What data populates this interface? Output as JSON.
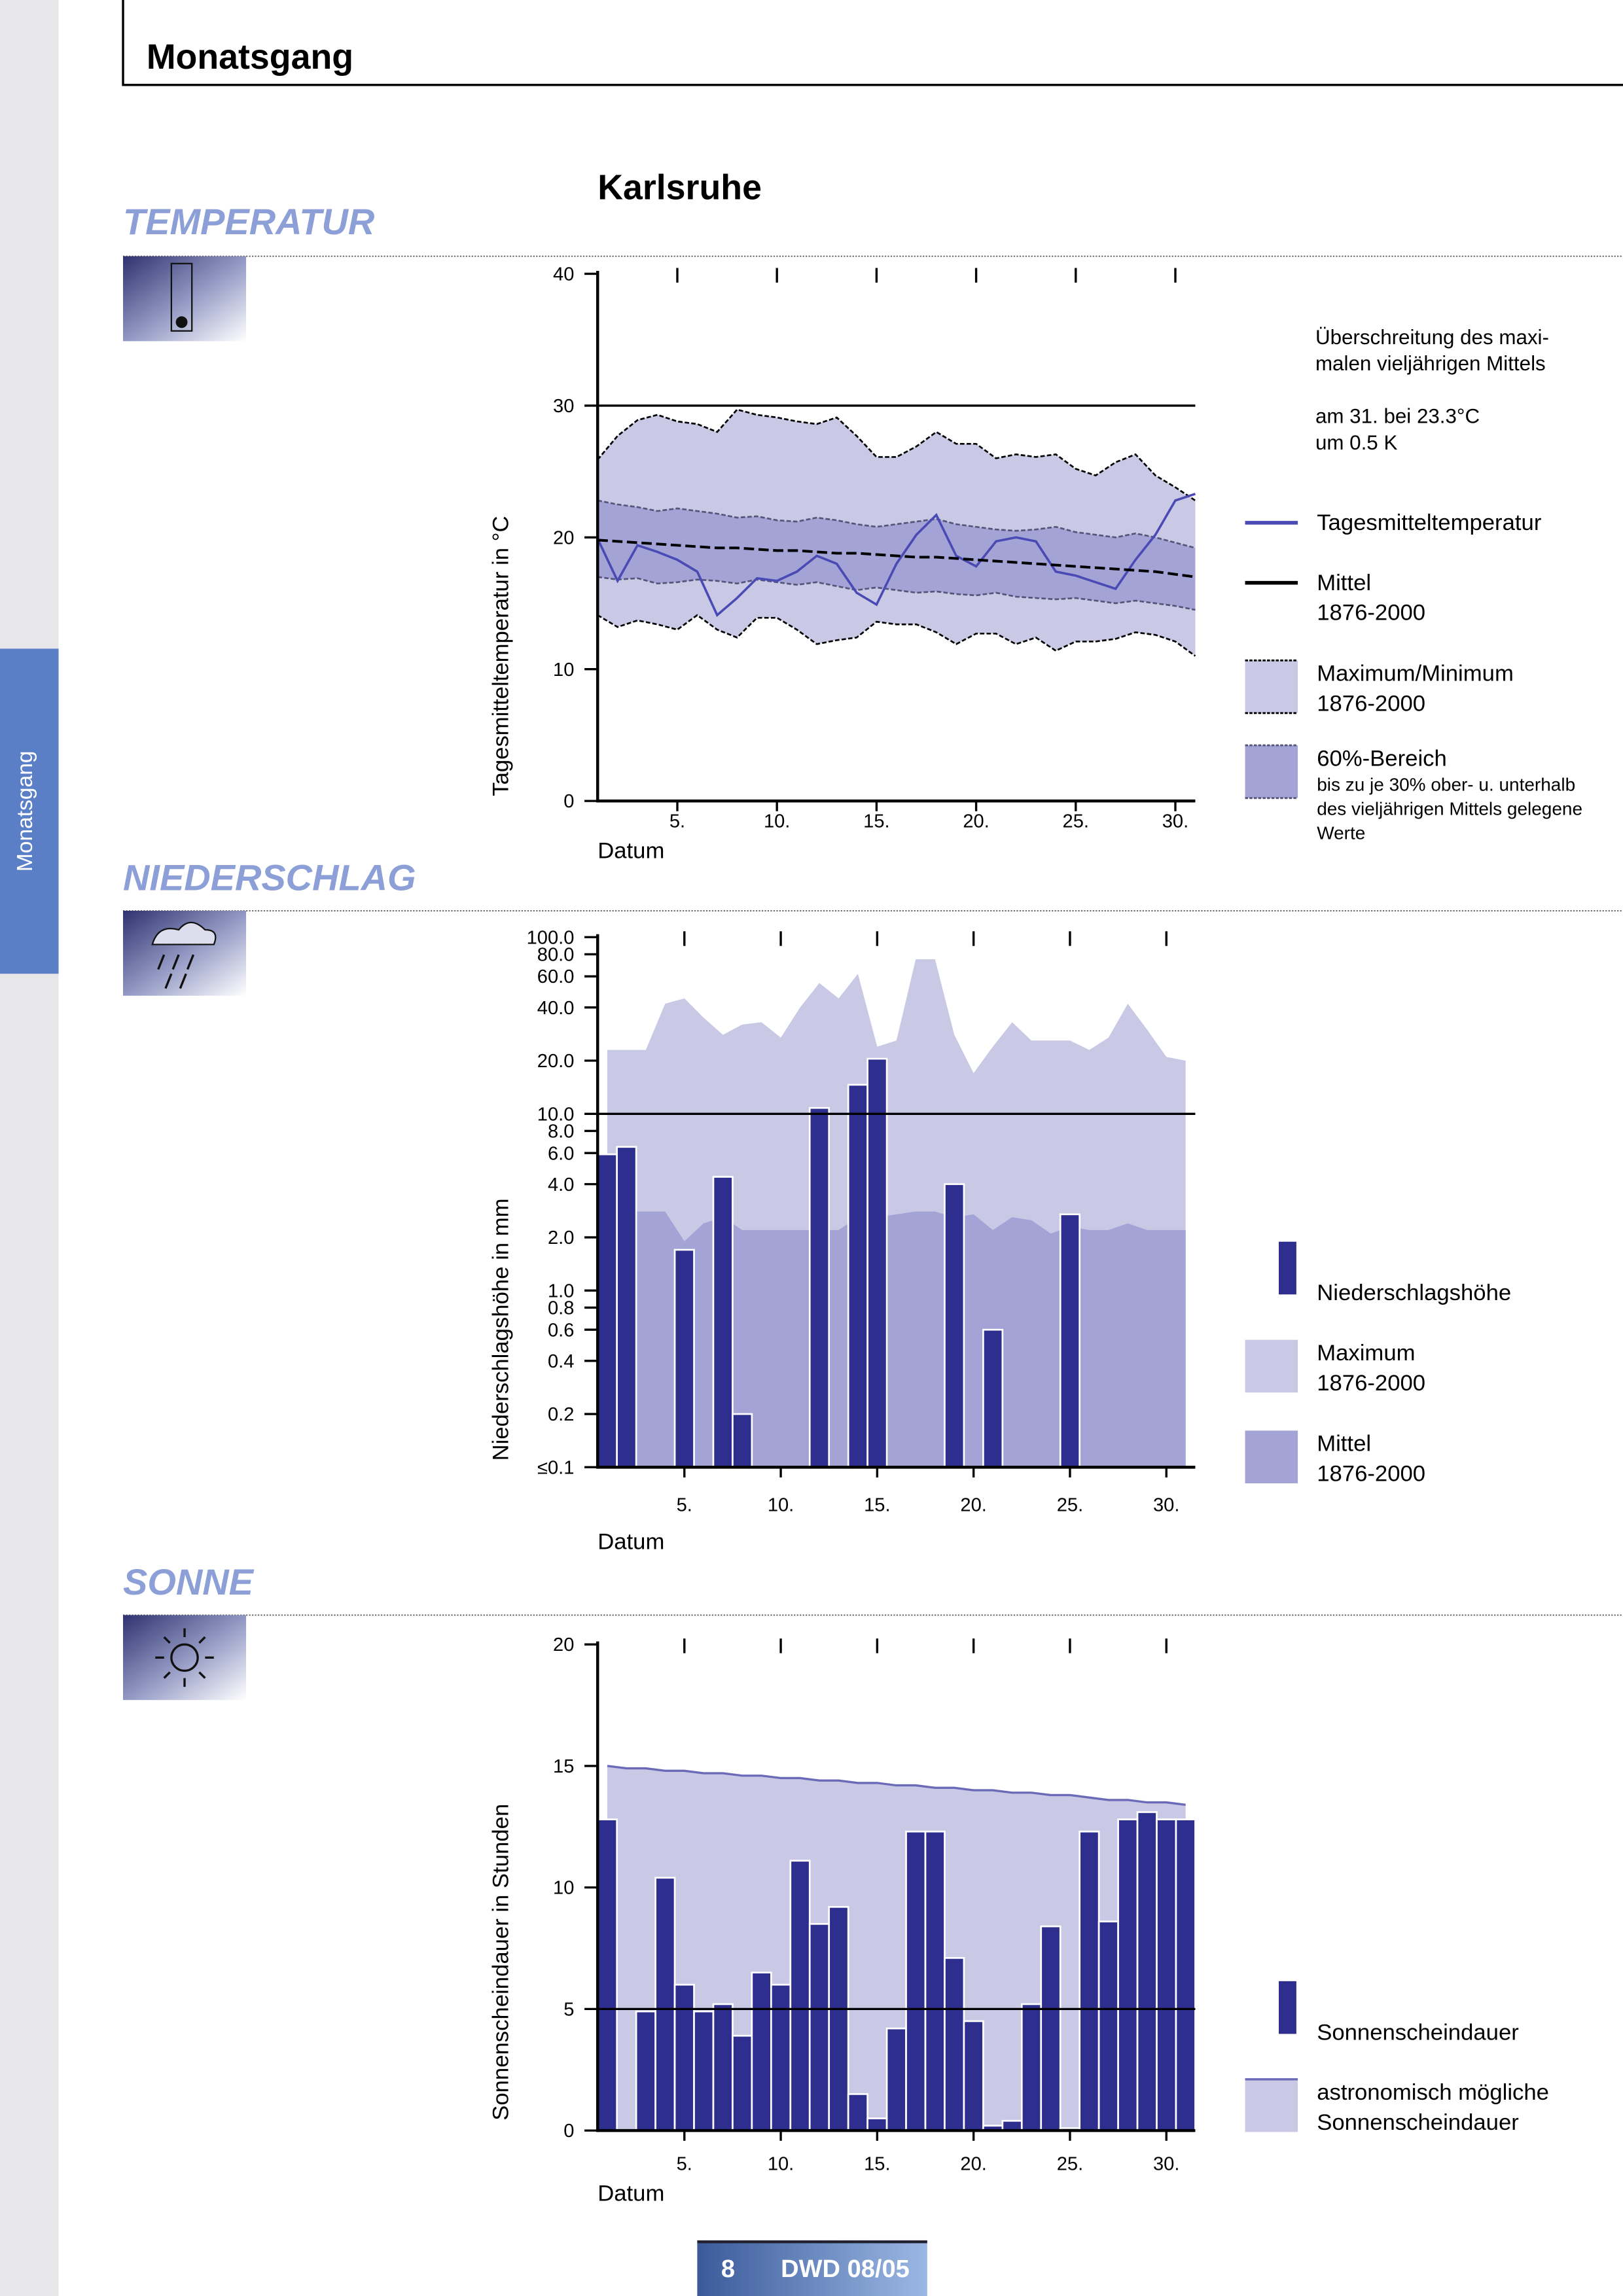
{
  "header": {
    "title": "Monatsgang"
  },
  "side_tab": "Monatsgang",
  "station": "Karlsruhe",
  "footer": {
    "page": "8",
    "label": "DWD 08/05"
  },
  "chart_data": [
    {
      "type": "line",
      "title": "TEMPERATUR",
      "xlabel": "Datum",
      "ylabel": "Tagesmitteltemperatur in °C",
      "x": [
        1,
        2,
        3,
        4,
        5,
        6,
        7,
        8,
        9,
        10,
        11,
        12,
        13,
        14,
        15,
        16,
        17,
        18,
        19,
        20,
        21,
        22,
        23,
        24,
        25,
        26,
        27,
        28,
        29,
        30,
        31
      ],
      "xlim": [
        1,
        31
      ],
      "xticks": [
        {
          "value": 5,
          "label": "5."
        },
        {
          "value": 10,
          "label": "10."
        },
        {
          "value": 15,
          "label": "15."
        },
        {
          "value": 20,
          "label": "20."
        },
        {
          "value": 25,
          "label": "25."
        },
        {
          "value": 30,
          "label": "30."
        }
      ],
      "ylim": [
        0,
        40
      ],
      "yticks": [
        0,
        10,
        20,
        30,
        40
      ],
      "reference_line": 30,
      "bands": [
        {
          "name": "Maximum/Minimum\n1876-2000",
          "color": "#c9c9e6",
          "edge_color": "#000000",
          "upper": [
            25.9,
            27.7,
            28.9,
            29.3,
            28.8,
            28.6,
            28.0,
            29.7,
            29.3,
            29.1,
            28.8,
            28.6,
            29.1,
            27.7,
            26.1,
            26.1,
            26.9,
            28.0,
            27.1,
            27.1,
            26.0,
            26.3,
            26.1,
            26.3,
            25.2,
            24.7,
            25.7,
            26.3,
            24.7,
            23.8,
            22.8
          ],
          "lower": [
            14.1,
            13.2,
            13.7,
            13.4,
            13.0,
            14.1,
            13.0,
            12.4,
            13.9,
            13.9,
            13.0,
            11.9,
            12.2,
            12.4,
            13.6,
            13.4,
            13.4,
            12.8,
            11.9,
            12.7,
            12.7,
            11.9,
            12.4,
            11.4,
            12.1,
            12.1,
            12.3,
            12.8,
            12.6,
            12.1,
            11.0
          ]
        },
        {
          "name": "60%-Bereich",
          "note": "bis zu je 30% ober- u. unterhalb\ndes vieljährigen Mittels gelegene\nWerte",
          "color": "#a3a3d6",
          "edge_color": "#55557a",
          "upper": [
            22.8,
            22.5,
            22.3,
            22.0,
            22.2,
            22.0,
            21.8,
            21.5,
            21.6,
            21.3,
            21.2,
            21.5,
            21.3,
            21.0,
            20.8,
            21.0,
            21.2,
            21.4,
            21.0,
            20.8,
            20.6,
            20.5,
            20.6,
            20.8,
            20.4,
            20.2,
            20.0,
            20.3,
            20.0,
            19.6,
            19.2
          ],
          "lower": [
            17.0,
            16.8,
            16.9,
            16.5,
            16.6,
            16.8,
            16.7,
            16.5,
            16.8,
            16.6,
            16.4,
            16.6,
            16.3,
            16.0,
            16.2,
            16.0,
            15.8,
            15.9,
            15.7,
            15.6,
            15.8,
            15.5,
            15.4,
            15.3,
            15.4,
            15.2,
            15.0,
            15.2,
            15.0,
            14.8,
            14.5
          ]
        }
      ],
      "series": [
        {
          "name": "Tagesmitteltemperatur",
          "color": "#4a4ab4",
          "line_style": "solid",
          "values": [
            19.9,
            16.7,
            19.4,
            18.9,
            18.3,
            17.4,
            14.1,
            15.4,
            16.9,
            16.7,
            17.4,
            18.6,
            18.0,
            15.8,
            14.9,
            18.0,
            20.2,
            21.7,
            18.6,
            17.8,
            19.7,
            20.0,
            19.7,
            17.4,
            17.1,
            16.6,
            16.1,
            18.3,
            20.2,
            22.8,
            23.3
          ]
        },
        {
          "name": "Mittel\n1876-2000",
          "color": "#000000",
          "line_style": "dashed",
          "values": [
            19.8,
            19.7,
            19.6,
            19.5,
            19.4,
            19.3,
            19.2,
            19.2,
            19.1,
            19.0,
            19.0,
            18.9,
            18.8,
            18.8,
            18.7,
            18.6,
            18.5,
            18.5,
            18.4,
            18.3,
            18.2,
            18.1,
            18.0,
            17.9,
            17.8,
            17.7,
            17.6,
            17.5,
            17.4,
            17.2,
            17.0
          ]
        }
      ],
      "annotation": {
        "text": "Überschreitung des maxi-\nmalen vieljährigen Mittels",
        "detail": "am 31. bei 23.3°C\num 0.5 K"
      }
    },
    {
      "type": "bar",
      "title": "NIEDERSCHLAG",
      "xlabel": "Datum",
      "ylabel": "Niederschlagshöhe in mm",
      "x": [
        1,
        2,
        3,
        4,
        5,
        6,
        7,
        8,
        9,
        10,
        11,
        12,
        13,
        14,
        15,
        16,
        17,
        18,
        19,
        20,
        21,
        22,
        23,
        24,
        25,
        26,
        27,
        28,
        29,
        30,
        31
      ],
      "xlim": [
        0.5,
        31.5
      ],
      "xticks": [
        {
          "value": 5,
          "label": "5."
        },
        {
          "value": 10,
          "label": "10."
        },
        {
          "value": 15,
          "label": "15."
        },
        {
          "value": 20,
          "label": "20."
        },
        {
          "value": 25,
          "label": "25."
        },
        {
          "value": 30,
          "label": "30."
        }
      ],
      "yscale": "log",
      "ylim": [
        0.1,
        100
      ],
      "yticks": [
        {
          "value": 0.1,
          "label": "≤0.1"
        },
        0.2,
        0.4,
        0.6,
        0.8,
        {
          "value": 1,
          "label": "1.0"
        },
        {
          "value": 2,
          "label": "2.0"
        },
        {
          "value": 4,
          "label": "4.0"
        },
        {
          "value": 6,
          "label": "6.0"
        },
        {
          "value": 8,
          "label": "8.0"
        },
        {
          "value": 10,
          "label": "10.0"
        },
        {
          "value": 20,
          "label": "20.0"
        },
        {
          "value": 40,
          "label": "40.0"
        },
        {
          "value": 60,
          "label": "60.0"
        },
        {
          "value": 80,
          "label": "80.0"
        },
        {
          "value": 100,
          "label": "100.0"
        }
      ],
      "reference_line": 10,
      "areas": [
        {
          "name": "Maximum\n1876-2000",
          "color": "#c9c9e6",
          "values": [
            23,
            23,
            23,
            42,
            45,
            35,
            28,
            32,
            33,
            27,
            40,
            55,
            45,
            62,
            24,
            26,
            75,
            75,
            28,
            17,
            24,
            33,
            26,
            26,
            26,
            23,
            27,
            42,
            30,
            21,
            20
          ]
        },
        {
          "name": "Mittel\n1876-2000",
          "color": "#a3a3d6",
          "values": [
            2.8,
            2.8,
            2.8,
            2.8,
            1.9,
            2.4,
            2.6,
            2.2,
            2.2,
            2.2,
            2.2,
            2.2,
            2.2,
            2.6,
            2.6,
            2.7,
            2.8,
            2.8,
            2.6,
            2.7,
            2.2,
            2.6,
            2.5,
            2.1,
            2.3,
            2.2,
            2.2,
            2.4,
            2.2,
            2.2,
            2.2
          ]
        }
      ],
      "series": [
        {
          "name": "Niederschlagshöhe",
          "color": "#2e2e8e",
          "values": [
            5.9,
            6.5,
            0,
            0,
            1.7,
            0,
            4.4,
            0.2,
            0,
            0,
            0,
            10.8,
            0,
            14.6,
            20.5,
            0,
            0,
            0,
            4,
            0,
            0.6,
            0,
            0,
            0,
            2.7,
            0,
            0,
            0,
            0,
            0,
            0
          ]
        }
      ]
    },
    {
      "type": "bar",
      "title": "SONNE",
      "xlabel": "Datum",
      "ylabel": "Sonnenscheindauer in Stunden",
      "x": [
        1,
        2,
        3,
        4,
        5,
        6,
        7,
        8,
        9,
        10,
        11,
        12,
        13,
        14,
        15,
        16,
        17,
        18,
        19,
        20,
        21,
        22,
        23,
        24,
        25,
        26,
        27,
        28,
        29,
        30,
        31
      ],
      "xlim": [
        0.5,
        31.5
      ],
      "xticks": [
        {
          "value": 5,
          "label": "5."
        },
        {
          "value": 10,
          "label": "10."
        },
        {
          "value": 15,
          "label": "15."
        },
        {
          "value": 20,
          "label": "20."
        },
        {
          "value": 25,
          "label": "25."
        },
        {
          "value": 30,
          "label": "30."
        }
      ],
      "ylim": [
        0,
        20
      ],
      "yticks": [
        0,
        5,
        10,
        15,
        20
      ],
      "reference_line": 5,
      "areas": [
        {
          "name": "astronomisch mögliche\nSonnenscheindauer",
          "color": "#c9c9e6",
          "edge_color": "#6a6ab8",
          "values": [
            15.0,
            14.9,
            14.9,
            14.8,
            14.8,
            14.7,
            14.7,
            14.6,
            14.6,
            14.5,
            14.5,
            14.4,
            14.4,
            14.3,
            14.3,
            14.2,
            14.2,
            14.1,
            14.1,
            14.0,
            14.0,
            13.9,
            13.9,
            13.8,
            13.8,
            13.7,
            13.6,
            13.6,
            13.5,
            13.5,
            13.4
          ]
        }
      ],
      "series": [
        {
          "name": "Sonnenscheindauer",
          "color": "#2e2e8e",
          "values": [
            12.8,
            0,
            4.9,
            10.4,
            6.0,
            4.9,
            5.2,
            3.9,
            6.5,
            6.0,
            11.1,
            8.5,
            9.2,
            1.5,
            0.5,
            4.2,
            12.3,
            12.3,
            7.1,
            4.5,
            0.2,
            0.4,
            5.2,
            8.4,
            0.1,
            12.3,
            8.6,
            12.8,
            13.1,
            12.8,
            12.8
          ]
        }
      ]
    }
  ]
}
